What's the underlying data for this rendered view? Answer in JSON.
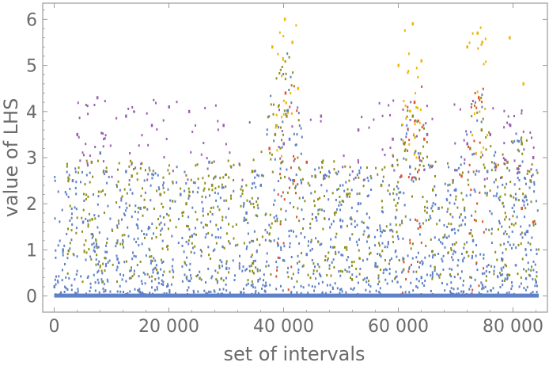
{
  "chart_data": {
    "type": "scatter",
    "title": "",
    "xlabel": "set of intervals",
    "ylabel": "value of LHS",
    "xlim": [
      -2000,
      86000
    ],
    "ylim": [
      -0.35,
      6.35
    ],
    "x_ticks": [
      0,
      20000,
      40000,
      60000,
      80000
    ],
    "x_tick_labels": [
      "0",
      "20 000",
      "40 000",
      "60 000",
      "80 000"
    ],
    "y_ticks": [
      0,
      1,
      2,
      3,
      4,
      5,
      6
    ],
    "y_tick_labels": [
      "0",
      "1",
      "2",
      "3",
      "4",
      "5",
      "6"
    ],
    "grid": false,
    "frame": true,
    "marker": "point",
    "colors": {
      "frame": "#9a9a9a",
      "tick_label": "#6b6b6b",
      "series": [
        "#5e81c8",
        "#8f8f1a",
        "#9b5fb0",
        "#e0502b",
        "#f0b400"
      ]
    },
    "series": [
      {
        "color": "#5e81c8",
        "x_range": [
          0,
          84500
        ],
        "y_typical_range": [
          0,
          2.8
        ],
        "points": [
          [
            0,
            0.2
          ],
          [
            1500,
            1.0
          ],
          [
            3200,
            2.5
          ],
          [
            5000,
            1.6
          ],
          [
            8000,
            3.1
          ],
          [
            11000,
            0.8
          ],
          [
            12500,
            2.7
          ],
          [
            15000,
            1.9
          ],
          [
            18000,
            0.5
          ],
          [
            22000,
            2.2
          ],
          [
            24000,
            1.3
          ],
          [
            27000,
            2.9
          ],
          [
            30000,
            0.6
          ],
          [
            33500,
            1.8
          ],
          [
            36000,
            2.4
          ],
          [
            39000,
            1.1
          ],
          [
            41000,
            3.4
          ],
          [
            44000,
            0.9
          ],
          [
            47000,
            2.6
          ],
          [
            50000,
            1.5
          ],
          [
            53000,
            2.0
          ],
          [
            56000,
            0.7
          ],
          [
            59500,
            1.7
          ],
          [
            62000,
            2.8
          ],
          [
            64000,
            0.4
          ],
          [
            67000,
            1.9
          ],
          [
            70000,
            2.3
          ],
          [
            73000,
            1.2
          ],
          [
            75500,
            2.7
          ],
          [
            78000,
            0.8
          ],
          [
            80500,
            2.1
          ],
          [
            82500,
            1.4
          ],
          [
            84000,
            0.3
          ]
        ]
      },
      {
        "color": "#8f8f1a",
        "x_range": [
          2000,
          84500
        ],
        "y_typical_range": [
          0.3,
          3.4
        ],
        "points": [
          [
            6500,
            2.9
          ],
          [
            13500,
            2.6
          ],
          [
            18500,
            2.2
          ],
          [
            23000,
            2.0
          ],
          [
            27500,
            2.4
          ],
          [
            34500,
            2.7
          ],
          [
            38500,
            3.5
          ],
          [
            40500,
            3.9
          ],
          [
            45500,
            2.6
          ],
          [
            51000,
            2.2
          ],
          [
            57000,
            2.4
          ],
          [
            61000,
            3.3
          ],
          [
            62500,
            3.9
          ],
          [
            66000,
            2.3
          ],
          [
            69500,
            2.5
          ],
          [
            72500,
            3.2
          ],
          [
            74500,
            3.6
          ],
          [
            79000,
            2.9
          ],
          [
            81500,
            3.3
          ],
          [
            83000,
            2.5
          ]
        ]
      },
      {
        "color": "#9b5fb0",
        "x_range": [
          3500,
          84000
        ],
        "y_typical_range": [
          2.5,
          4.3
        ],
        "points": [
          [
            4000,
            3.5
          ],
          [
            7500,
            4.3
          ],
          [
            12500,
            3.9
          ],
          [
            17000,
            3.7
          ],
          [
            20000,
            4.1
          ],
          [
            23500,
            4.0
          ],
          [
            29500,
            3.7
          ],
          [
            40000,
            3.3
          ],
          [
            46500,
            3.9
          ],
          [
            53000,
            3.6
          ],
          [
            59000,
            3.4
          ],
          [
            65000,
            3.5
          ],
          [
            72000,
            3.3
          ],
          [
            76000,
            3.5
          ],
          [
            79500,
            3.7
          ],
          [
            83500,
            3.0
          ]
        ]
      },
      {
        "color": "#e0502b",
        "x_range": [
          37000,
          84000
        ],
        "y_typical_range": [
          0,
          4.6
        ],
        "points": [
          [
            37500,
            3.2
          ],
          [
            40300,
            4.4
          ],
          [
            41800,
            2.5
          ],
          [
            44000,
            2.9
          ],
          [
            60500,
            2.6
          ],
          [
            62800,
            4.2
          ],
          [
            63800,
            1.5
          ],
          [
            64500,
            3.4
          ],
          [
            71000,
            2.6
          ],
          [
            74000,
            4.3
          ],
          [
            77000,
            2.8
          ],
          [
            81500,
            1.9
          ],
          [
            83500,
            1.6
          ]
        ]
      },
      {
        "color": "#f0b400",
        "x_range": [
          37500,
          83000
        ],
        "y_typical_range": [
          3.0,
          6.0
        ],
        "points": [
          [
            38000,
            5.4
          ],
          [
            40200,
            6.0
          ],
          [
            41500,
            5.5
          ],
          [
            42500,
            4.5
          ],
          [
            60000,
            5.0
          ],
          [
            62500,
            5.9
          ],
          [
            64000,
            5.1
          ],
          [
            72000,
            5.4
          ],
          [
            73800,
            5.7
          ],
          [
            74600,
            5.5
          ],
          [
            79400,
            5.6
          ],
          [
            81800,
            4.6
          ]
        ]
      }
    ]
  }
}
